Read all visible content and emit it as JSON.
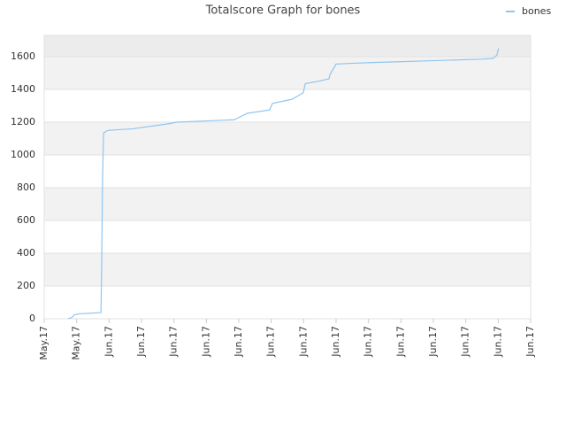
{
  "chart_data": {
    "type": "line",
    "title": "Totalscore Graph for bones",
    "x": [
      0.74,
      0.87,
      0.93,
      1.09,
      1.55,
      1.75,
      1.77,
      1.8,
      1.83,
      1.96,
      2.73,
      3.82,
      4.09,
      5.86,
      6.27,
      6.95,
      7.04,
      7.64,
      7.99,
      8.05,
      8.45,
      8.78,
      8.81,
      9.0,
      9.54,
      10.23,
      11.04,
      11.86,
      12.68,
      13.5,
      13.85,
      13.96,
      14.01
    ],
    "series": [
      {
        "name": "bones",
        "color": "#90c5f0",
        "values": [
          0,
          10,
          25,
          30,
          35,
          38,
          300,
          865,
          1135,
          1150,
          1160,
          1190,
          1200,
          1215,
          1255,
          1275,
          1315,
          1340,
          1380,
          1435,
          1450,
          1465,
          1490,
          1555,
          1560,
          1565,
          1570,
          1575,
          1580,
          1585,
          1590,
          1610,
          1650
        ]
      }
    ],
    "xlim": [
      0,
      15
    ],
    "xticks": [
      {
        "value": 0,
        "label": "May.17"
      },
      {
        "value": 1,
        "label": "May.17"
      },
      {
        "value": 2,
        "label": "Jun.17"
      },
      {
        "value": 3,
        "label": "Jun.17"
      },
      {
        "value": 4,
        "label": "Jun.17"
      },
      {
        "value": 5,
        "label": "Jun.17"
      },
      {
        "value": 6,
        "label": "Jun.17"
      },
      {
        "value": 7,
        "label": "Jun.17"
      },
      {
        "value": 8,
        "label": "Jun.17"
      },
      {
        "value": 9,
        "label": "Jun.17"
      },
      {
        "value": 10,
        "label": "Jun.17"
      },
      {
        "value": 11,
        "label": "Jun.17"
      },
      {
        "value": 12,
        "label": "Jun.17"
      },
      {
        "value": 13,
        "label": "Jun.17"
      },
      {
        "value": 14,
        "label": "Jun.17"
      },
      {
        "value": 15,
        "label": "Jun.17"
      }
    ],
    "ylim": [
      0,
      1730
    ],
    "yticks": [
      0,
      200,
      400,
      600,
      800,
      1000,
      1200,
      1400,
      1600
    ],
    "grid": true,
    "legend": "top-right"
  }
}
